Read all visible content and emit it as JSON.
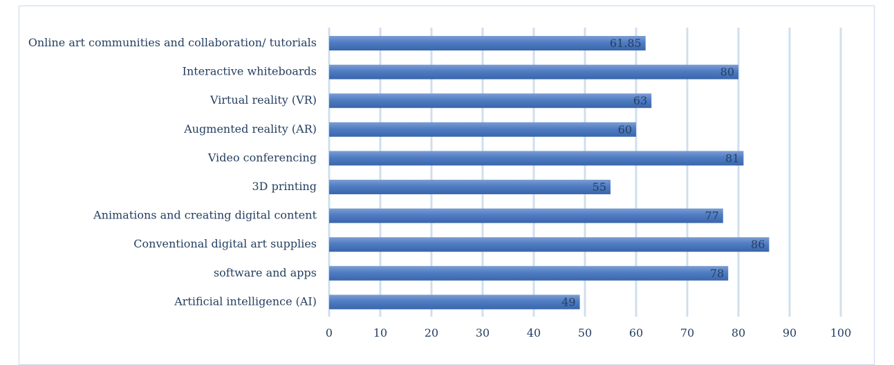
{
  "chart_data": {
    "type": "bar",
    "orientation": "horizontal",
    "title": "",
    "xlabel": "",
    "ylabel": "",
    "xlim": [
      0,
      100
    ],
    "ticks": [
      0,
      10,
      20,
      30,
      40,
      50,
      60,
      70,
      80,
      90,
      100
    ],
    "grid": true,
    "legend": "none",
    "colors": {
      "bar_top": "#6f93cf",
      "bar_mid": "#4a77bf",
      "bar_bottom": "#3a66ad",
      "grid": "#cfdfee",
      "text": "#243f60"
    },
    "categories": [
      "Online art communities and collaboration/ tutorials",
      "Interactive whiteboards",
      "Virtual reality (VR)",
      "Augmented reality (AR)",
      "Video conferencing",
      "3D printing",
      "Animations and creating digital content",
      "Conventional digital art supplies",
      "software and apps",
      "Artificial intelligence (AI)"
    ],
    "values": [
      61.85,
      80,
      63,
      60,
      81,
      55,
      77,
      86,
      78,
      49
    ],
    "value_labels": [
      "61.85",
      "80",
      "63",
      "60",
      "81",
      "55",
      "77",
      "86",
      "78",
      "49"
    ]
  }
}
